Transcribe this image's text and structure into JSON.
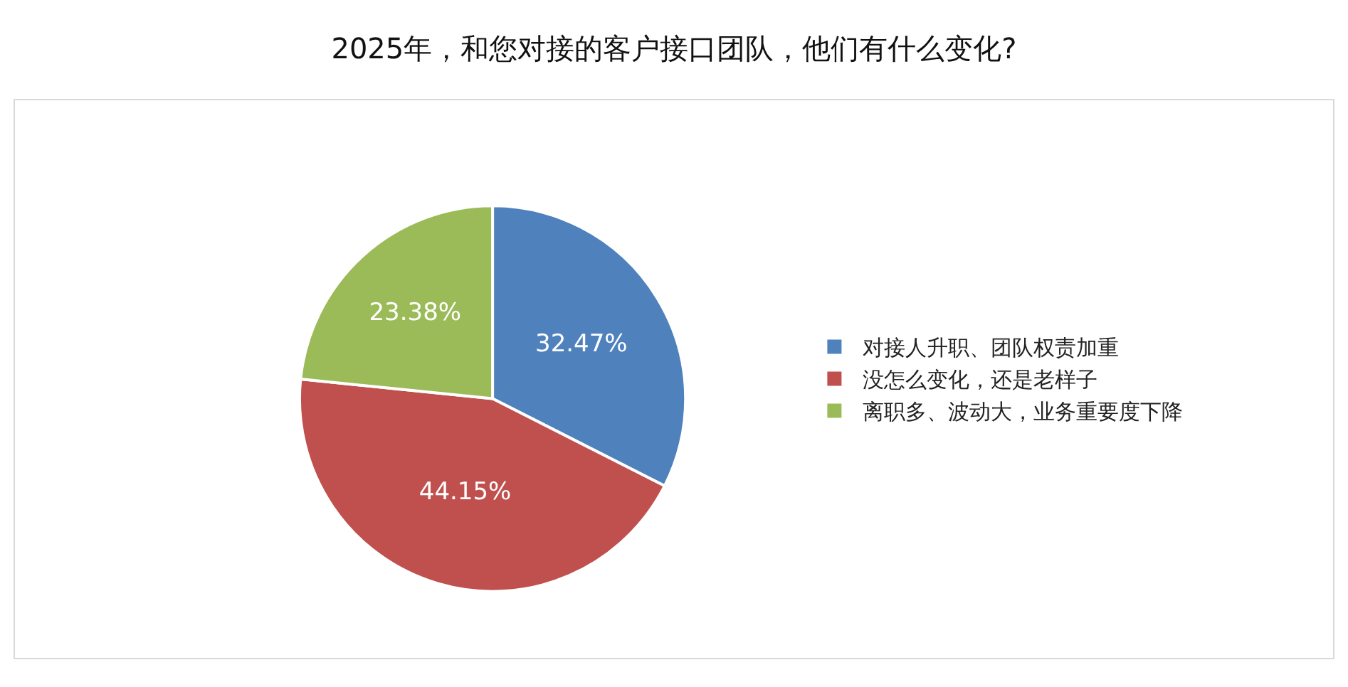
{
  "chart_data": {
    "type": "pie",
    "title": "2025年，和您对接的客户接口团队，他们有什么变化?",
    "categories": [
      "对接人升职、团队权责加重",
      "没怎么变化，还是老样子",
      "离职多、波动大，业务重要度下降"
    ],
    "values": [
      32.47,
      44.15,
      23.38
    ],
    "value_labels": [
      "32.47%",
      "44.15%",
      "23.38%"
    ],
    "colors": [
      "#4f81bd",
      "#c0504d",
      "#9bbb59"
    ],
    "legend": "right"
  }
}
